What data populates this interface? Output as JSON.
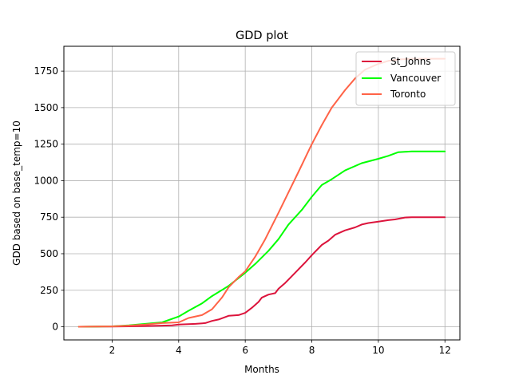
{
  "chart_data": {
    "type": "line",
    "title": "GDD plot",
    "xlabel": "Months",
    "ylabel": "GDD based on base_temp=10",
    "xlim": [
      0.55,
      12.45
    ],
    "ylim": [
      -90,
      1920
    ],
    "xticks": [
      2,
      4,
      6,
      8,
      10,
      12
    ],
    "xtick_labels": [
      "2",
      "4",
      "6",
      "8",
      "10",
      "12"
    ],
    "yticks": [
      0,
      250,
      500,
      750,
      1000,
      1250,
      1500,
      1750
    ],
    "ytick_labels": [
      "0",
      "250",
      "500",
      "750",
      "1000",
      "1250",
      "1500",
      "1750"
    ],
    "grid": true,
    "legend_position": "top-right",
    "series": [
      {
        "name": "St_Johns",
        "color": "#dc143c",
        "x": [
          1,
          2,
          2.5,
          3,
          3.5,
          3.8,
          4,
          4.5,
          4.8,
          5,
          5.2,
          5.5,
          5.8,
          6,
          6.2,
          6.4,
          6.5,
          6.7,
          6.9,
          7,
          7.2,
          7.5,
          7.8,
          8,
          8.3,
          8.5,
          8.7,
          9,
          9.3,
          9.5,
          9.7,
          10,
          10.3,
          10.5,
          10.8,
          11,
          11.5,
          12
        ],
        "y": [
          0,
          2,
          3,
          5,
          8,
          10,
          15,
          20,
          25,
          40,
          50,
          75,
          80,
          95,
          130,
          170,
          200,
          220,
          230,
          260,
          300,
          370,
          440,
          490,
          560,
          590,
          630,
          660,
          680,
          700,
          710,
          720,
          730,
          735,
          748,
          750,
          750,
          750
        ]
      },
      {
        "name": "Vancouver",
        "color": "#00ff00",
        "x": [
          1,
          2,
          2.5,
          3,
          3.5,
          4,
          4.3,
          4.7,
          5,
          5.5,
          6,
          6.3,
          6.7,
          7,
          7.3,
          7.7,
          8,
          8.3,
          8.6,
          9,
          9.5,
          10,
          10.3,
          10.6,
          11,
          11.5,
          12
        ],
        "y": [
          0,
          3,
          10,
          20,
          30,
          70,
          110,
          160,
          210,
          280,
          370,
          430,
          520,
          600,
          700,
          800,
          890,
          970,
          1010,
          1070,
          1120,
          1150,
          1170,
          1195,
          1200,
          1200,
          1200
        ]
      },
      {
        "name": "Toronto",
        "color": "#ff6347",
        "x": [
          1,
          2,
          2.5,
          3,
          3.5,
          4,
          4.3,
          4.7,
          5,
          5.3,
          5.5,
          5.8,
          6,
          6.3,
          6.6,
          7,
          7.3,
          7.6,
          8,
          8.3,
          8.6,
          9,
          9.3,
          9.6,
          10,
          10.3,
          10.6,
          11,
          11.5,
          12
        ],
        "y": [
          0,
          3,
          8,
          15,
          25,
          30,
          60,
          80,
          120,
          200,
          270,
          340,
          380,
          480,
          600,
          780,
          920,
          1060,
          1250,
          1380,
          1500,
          1620,
          1700,
          1760,
          1800,
          1820,
          1830,
          1835,
          1835,
          1835
        ]
      }
    ]
  }
}
